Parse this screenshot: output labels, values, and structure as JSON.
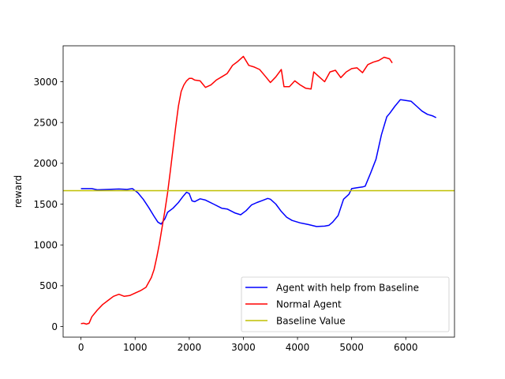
{
  "chart_data": {
    "type": "line",
    "title": "",
    "xlabel": "",
    "ylabel": "reward",
    "xlim": [
      -330,
      6900
    ],
    "ylim": [
      -130,
      3440
    ],
    "xticks": [
      0,
      1000,
      2000,
      3000,
      4000,
      5000,
      6000
    ],
    "yticks": [
      0,
      500,
      1000,
      1500,
      2000,
      2500,
      3000
    ],
    "grid": false,
    "legend_position": "lower-right",
    "series": [
      {
        "name": "Agent with help from Baseline",
        "color": "#0000ff",
        "x": [
          0,
          100,
          200,
          300,
          500,
          700,
          850,
          950,
          1050,
          1150,
          1250,
          1350,
          1420,
          1480,
          1550,
          1600,
          1700,
          1800,
          1880,
          1950,
          2000,
          2050,
          2100,
          2200,
          2300,
          2450,
          2600,
          2700,
          2850,
          2950,
          3050,
          3150,
          3250,
          3350,
          3450,
          3500,
          3600,
          3700,
          3800,
          3900,
          4050,
          4200,
          4350,
          4500,
          4580,
          4650,
          4750,
          4850,
          4950,
          5000,
          5100,
          5200,
          5250,
          5350,
          5450,
          5550,
          5650,
          5700,
          5800,
          5900,
          6000,
          6100,
          6200,
          6300,
          6400,
          6500,
          6560
        ],
        "y": [
          1690,
          1690,
          1690,
          1675,
          1680,
          1685,
          1680,
          1690,
          1640,
          1560,
          1460,
          1350,
          1280,
          1255,
          1320,
          1400,
          1450,
          1520,
          1590,
          1645,
          1630,
          1540,
          1530,
          1565,
          1550,
          1500,
          1450,
          1440,
          1390,
          1370,
          1420,
          1490,
          1520,
          1545,
          1570,
          1560,
          1500,
          1410,
          1340,
          1300,
          1270,
          1250,
          1225,
          1230,
          1240,
          1280,
          1360,
          1560,
          1620,
          1690,
          1700,
          1710,
          1720,
          1880,
          2050,
          2350,
          2570,
          2610,
          2700,
          2780,
          2770,
          2760,
          2700,
          2640,
          2600,
          2580,
          2560
        ]
      },
      {
        "name": "Normal Agent",
        "color": "#ff0000",
        "x": [
          0,
          50,
          100,
          150,
          200,
          300,
          400,
          500,
          600,
          700,
          800,
          900,
          1000,
          1100,
          1200,
          1300,
          1350,
          1400,
          1450,
          1500,
          1550,
          1600,
          1650,
          1700,
          1750,
          1800,
          1850,
          1900,
          1950,
          2000,
          2050,
          2100,
          2200,
          2300,
          2400,
          2500,
          2600,
          2700,
          2800,
          2900,
          3000,
          3100,
          3200,
          3300,
          3400,
          3500,
          3600,
          3700,
          3750,
          3850,
          3950,
          4050,
          4150,
          4250,
          4300,
          4400,
          4500,
          4600,
          4700,
          4800,
          4900,
          5000,
          5100,
          5200,
          5300,
          5400,
          5500,
          5600,
          5700,
          5750
        ],
        "y": [
          35,
          40,
          30,
          40,
          120,
          200,
          270,
          320,
          370,
          395,
          370,
          380,
          410,
          440,
          480,
          600,
          700,
          850,
          1020,
          1220,
          1420,
          1640,
          1900,
          2180,
          2450,
          2700,
          2880,
          2960,
          3010,
          3040,
          3040,
          3020,
          3010,
          2930,
          2960,
          3020,
          3060,
          3100,
          3200,
          3250,
          3310,
          3200,
          3180,
          3150,
          3070,
          2990,
          3060,
          3150,
          2940,
          2940,
          3010,
          2960,
          2920,
          2910,
          3120,
          3060,
          3000,
          3120,
          3140,
          3050,
          3120,
          3160,
          3170,
          3110,
          3210,
          3240,
          3260,
          3300,
          3280,
          3230
        ]
      },
      {
        "name": "Baseline Value",
        "color": "#bfbf00",
        "x": [
          -330,
          6900
        ],
        "y": [
          1665,
          1665
        ]
      }
    ]
  }
}
